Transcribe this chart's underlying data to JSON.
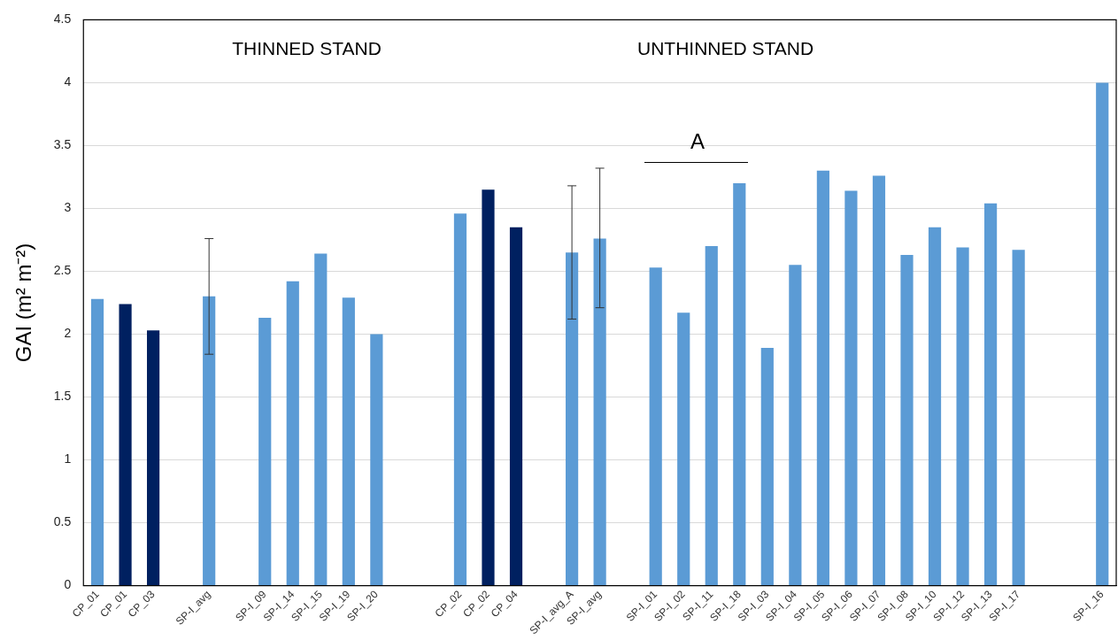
{
  "chart_data": {
    "type": "bar",
    "ylabel": "GAI (m² m⁻²)",
    "categories": [
      "CP_01",
      "CP_01",
      "CP_03",
      null,
      "SP-I_avg",
      null,
      "SP-I_09",
      "SP-I_14",
      "SP-I_15",
      "SP-I_19",
      "SP-I_20",
      null,
      null,
      "CP_02",
      "CP_02",
      "CP_04",
      null,
      "SP-I_avg_A",
      "SP-I_avg",
      null,
      "SP-I_01",
      "SP-I_02",
      "SP-I_11",
      "SP-I_18",
      "SP-I_03",
      "SP-I_04",
      "SP-I_05",
      "SP-I_06",
      "SP-I_07",
      "SP-I_08",
      "SP-I_10",
      "SP-I_12",
      "SP-I_13",
      "SP-I_17",
      null,
      null,
      "SP-I_16"
    ],
    "values": [
      2.28,
      2.24,
      2.03,
      null,
      2.3,
      null,
      2.13,
      2.42,
      2.64,
      2.29,
      2.0,
      null,
      null,
      2.96,
      3.15,
      2.85,
      null,
      2.65,
      2.76,
      null,
      2.53,
      2.17,
      2.7,
      3.2,
      1.89,
      2.55,
      3.3,
      3.14,
      3.26,
      2.63,
      2.85,
      2.69,
      3.04,
      2.67,
      null,
      null,
      4.0
    ],
    "colors": [
      "#5b9bd5",
      "#002060",
      "#002060",
      "#5b9bd5",
      "#5b9bd5",
      "#5b9bd5",
      "#5b9bd5",
      "#5b9bd5",
      "#5b9bd5",
      "#5b9bd5",
      "#5b9bd5",
      "#5b9bd5",
      "#5b9bd5",
      "#5b9bd5",
      "#002060",
      "#002060",
      "#5b9bd5",
      "#5b9bd5",
      "#5b9bd5",
      "#5b9bd5",
      "#5b9bd5",
      "#5b9bd5",
      "#5b9bd5",
      "#5b9bd5",
      "#5b9bd5",
      "#5b9bd5",
      "#5b9bd5",
      "#5b9bd5",
      "#5b9bd5",
      "#5b9bd5",
      "#5b9bd5",
      "#5b9bd5",
      "#5b9bd5",
      "#5b9bd5",
      "#5b9bd5",
      "#5b9bd5",
      "#5b9bd5"
    ],
    "errors": [
      null,
      null,
      null,
      null,
      [
        1.84,
        2.76
      ],
      null,
      null,
      null,
      null,
      null,
      null,
      null,
      null,
      null,
      null,
      null,
      null,
      [
        2.12,
        3.18
      ],
      [
        2.21,
        3.32
      ],
      null,
      null,
      null,
      null,
      null,
      null,
      null,
      null,
      null,
      null,
      null,
      null,
      null,
      null,
      null,
      null,
      null,
      null
    ],
    "annotations": [
      "THINNED STAND",
      "UNTHINNED STAND",
      "A"
    ],
    "ylim": [
      0,
      4.5
    ],
    "yticks": [
      0,
      0.5,
      1,
      1.5,
      2,
      2.5,
      3,
      3.5,
      4,
      4.5
    ],
    "grid": "y",
    "legend": false
  }
}
